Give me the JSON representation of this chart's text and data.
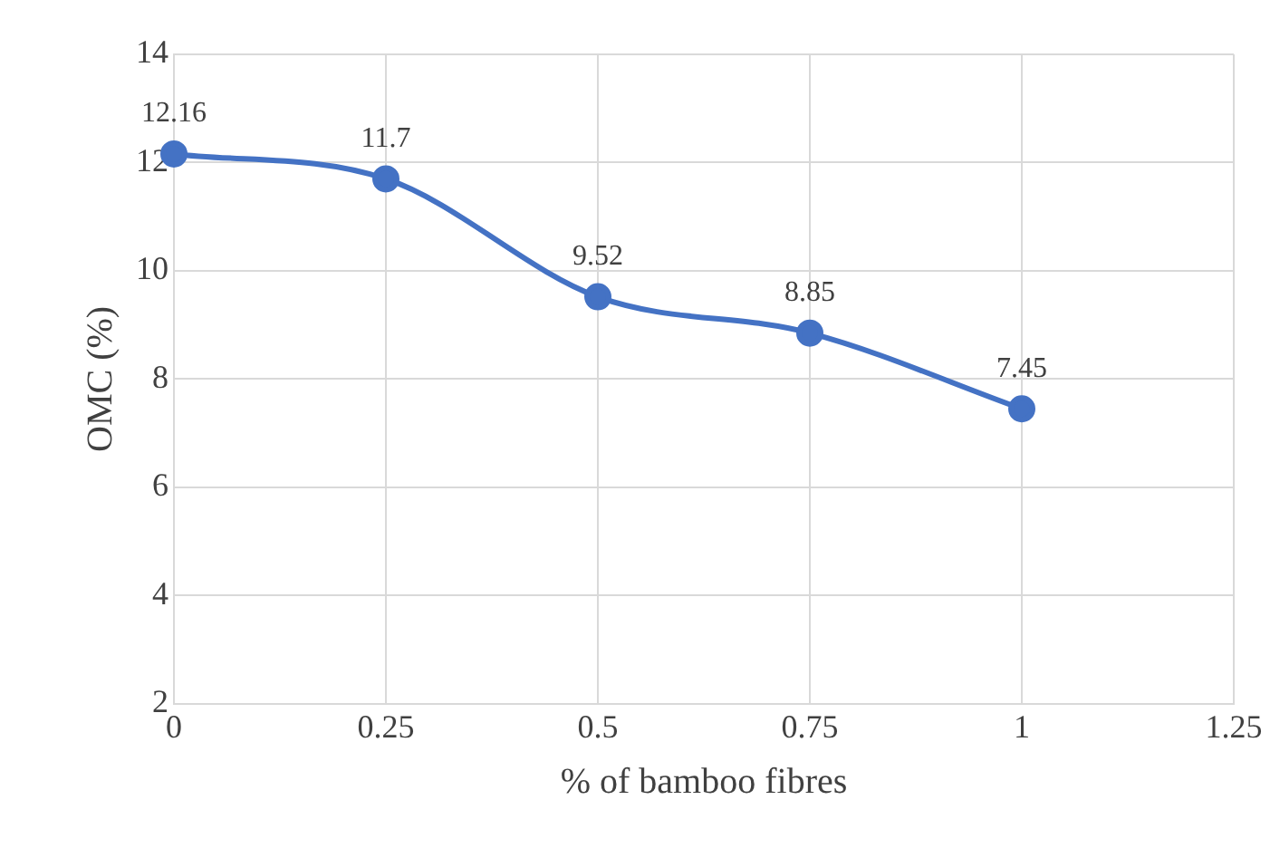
{
  "chart_data": {
    "type": "line",
    "xlabel": "% of bamboo fibres",
    "ylabel": "OMC (%)",
    "x": [
      0,
      0.25,
      0.5,
      0.75,
      1
    ],
    "series": [
      {
        "color": "#4472c4",
        "values": [
          12.16,
          11.7,
          9.52,
          8.85,
          7.45
        ]
      }
    ],
    "xlim": [
      0,
      1.25
    ],
    "xticks": [
      0,
      0.25,
      0.5,
      0.75,
      1,
      1.25
    ],
    "ylim": [
      2,
      14
    ],
    "yticks": [
      2,
      4,
      6,
      8,
      10,
      12,
      14
    ],
    "grid": true,
    "legend": false,
    "marker": "circle",
    "line_style": "solid",
    "data_labels": true
  }
}
